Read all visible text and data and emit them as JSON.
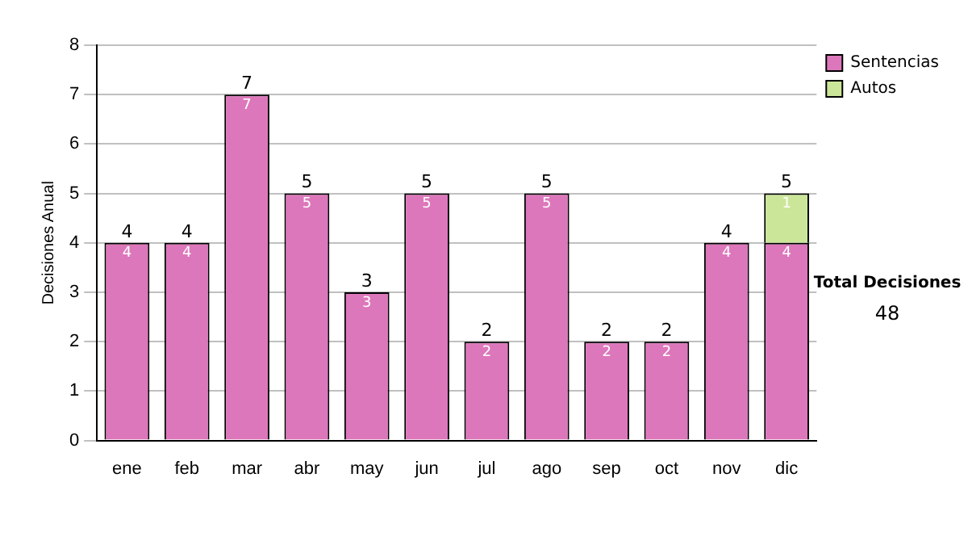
{
  "chart_data": {
    "type": "bar",
    "ylabel": "Decisiones Anual",
    "categories": [
      "ene",
      "feb",
      "mar",
      "abr",
      "may",
      "jun",
      "jul",
      "ago",
      "sep",
      "oct",
      "nov",
      "dic"
    ],
    "series": [
      {
        "name": "Sentencias",
        "color": "#dd77bb",
        "values": [
          4,
          4,
          7,
          5,
          3,
          5,
          2,
          5,
          2,
          2,
          4,
          4
        ]
      },
      {
        "name": "Autos",
        "color": "#cce699",
        "values": [
          null,
          null,
          null,
          null,
          null,
          null,
          null,
          null,
          null,
          null,
          null,
          1
        ]
      }
    ],
    "stacked": true,
    "data_labels": true,
    "totals": [
      "4",
      "4",
      "7",
      "5",
      "3",
      "5",
      "2",
      "5",
      "2",
      "2",
      "4",
      "5"
    ],
    "ylim": [
      0,
      8
    ],
    "yticks": [
      0,
      1,
      2,
      3,
      4,
      5,
      6,
      7,
      8
    ],
    "grid": "y",
    "legend": "right",
    "annotations": [
      "Total Decisiones",
      "48"
    ]
  }
}
